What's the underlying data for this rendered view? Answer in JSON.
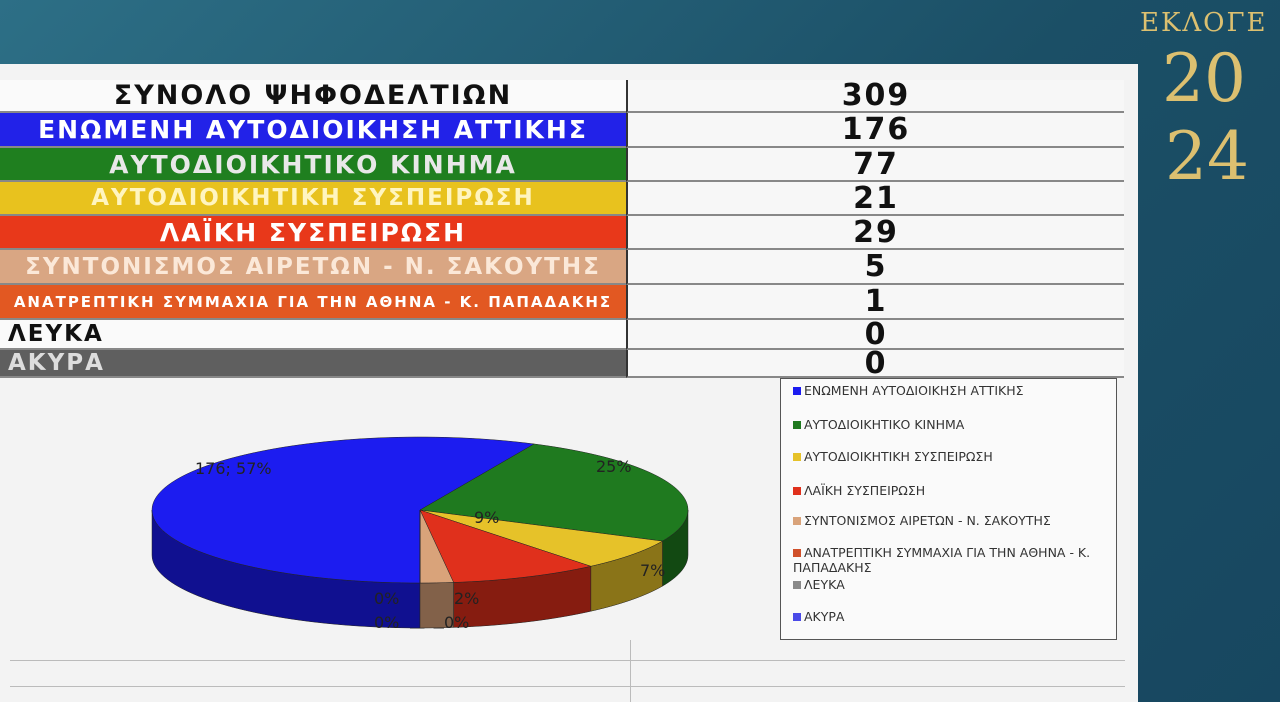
{
  "header": {
    "title": "ΕΚΛΟΓΕ",
    "year_top": "20",
    "year_bottom": "24"
  },
  "table": {
    "total": {
      "label": "ΣΥΝΟΛΟ ΨΗΦΟΔΕΛΤΙΩΝ",
      "votes": 309
    },
    "rows": [
      {
        "label": "ΕΝΩΜΕΝΗ ΑΥΤΟΔΙΟΙΚΗΣΗ ΑΤΤΙΚΗΣ",
        "votes": 176
      },
      {
        "label": "ΑΥΤΟΔΙΟΙΚΗΤΙΚΟ ΚΙΝΗΜΑ",
        "votes": 77
      },
      {
        "label": "ΑΥΤΟΔΙΟΙΚΗΤΙΚΗ ΣΥΣΠΕΙΡΩΣΗ",
        "votes": 21
      },
      {
        "label": "ΛΑΪΚΗ ΣΥΣΠΕΙΡΩΣΗ",
        "votes": 29
      },
      {
        "label": "ΣΥΝΤΟΝΙΣΜΟΣ ΑΙΡΕΤΩΝ - Ν. ΣΑΚΟΥΤΗΣ",
        "votes": 5
      },
      {
        "label": "ΑΝΑΤΡΕΠΤΙΚΗ ΣΥΜΜΑΧΙΑ ΓΙΑ ΤΗΝ ΑΘΗΝΑ - Κ. ΠΑΠΑΔΑΚΗΣ",
        "votes": 1
      },
      {
        "label": "ΛΕΥΚΑ",
        "votes": 0
      },
      {
        "label": "ΑΚΥΡΑ",
        "votes": 0
      }
    ]
  },
  "chart_data": {
    "type": "pie",
    "categories": [
      "ΕΝΩΜΕΝΗ ΑΥΤΟΔΙΟΙΚΗΣΗ ΑΤΤΙΚΗΣ",
      "ΑΥΤΟΔΙΟΙΚΗΤΙΚΟ ΚΙΝΗΜΑ",
      "ΑΥΤΟΔΙΟΙΚΗΤΙΚΗ ΣΥΣΠΕΙΡΩΣΗ",
      "ΛΑΪΚΗ ΣΥΣΠΕΙΡΩΣΗ",
      "ΣΥΝΤΟΝΙΣΜΟΣ ΑΙΡΕΤΩΝ - Ν. ΣΑΚΟΥΤΗΣ",
      "ΑΝΑΤΡΕΠΤΙΚΗ ΣΥΜΜΑΧΙΑ ΓΙΑ ΤΗΝ ΑΘΗΝΑ - Κ. ΠΑΠΑΔΑΚΗΣ",
      "ΛΕΥΚΑ",
      "ΑΚΥΡΑ"
    ],
    "values": [
      57,
      25,
      7,
      9,
      2,
      0,
      0,
      0
    ],
    "value_labels": [
      "176; 57%",
      "25%",
      "7%",
      "9%",
      "2%",
      "0%",
      "0%",
      "0%"
    ],
    "colors": [
      "#1c1cf0",
      "#1f7a1f",
      "#e6c229",
      "#e0301c",
      "#d9a37a",
      "#d0502a",
      "#8a8a8a",
      "#4a4ae8"
    ]
  }
}
